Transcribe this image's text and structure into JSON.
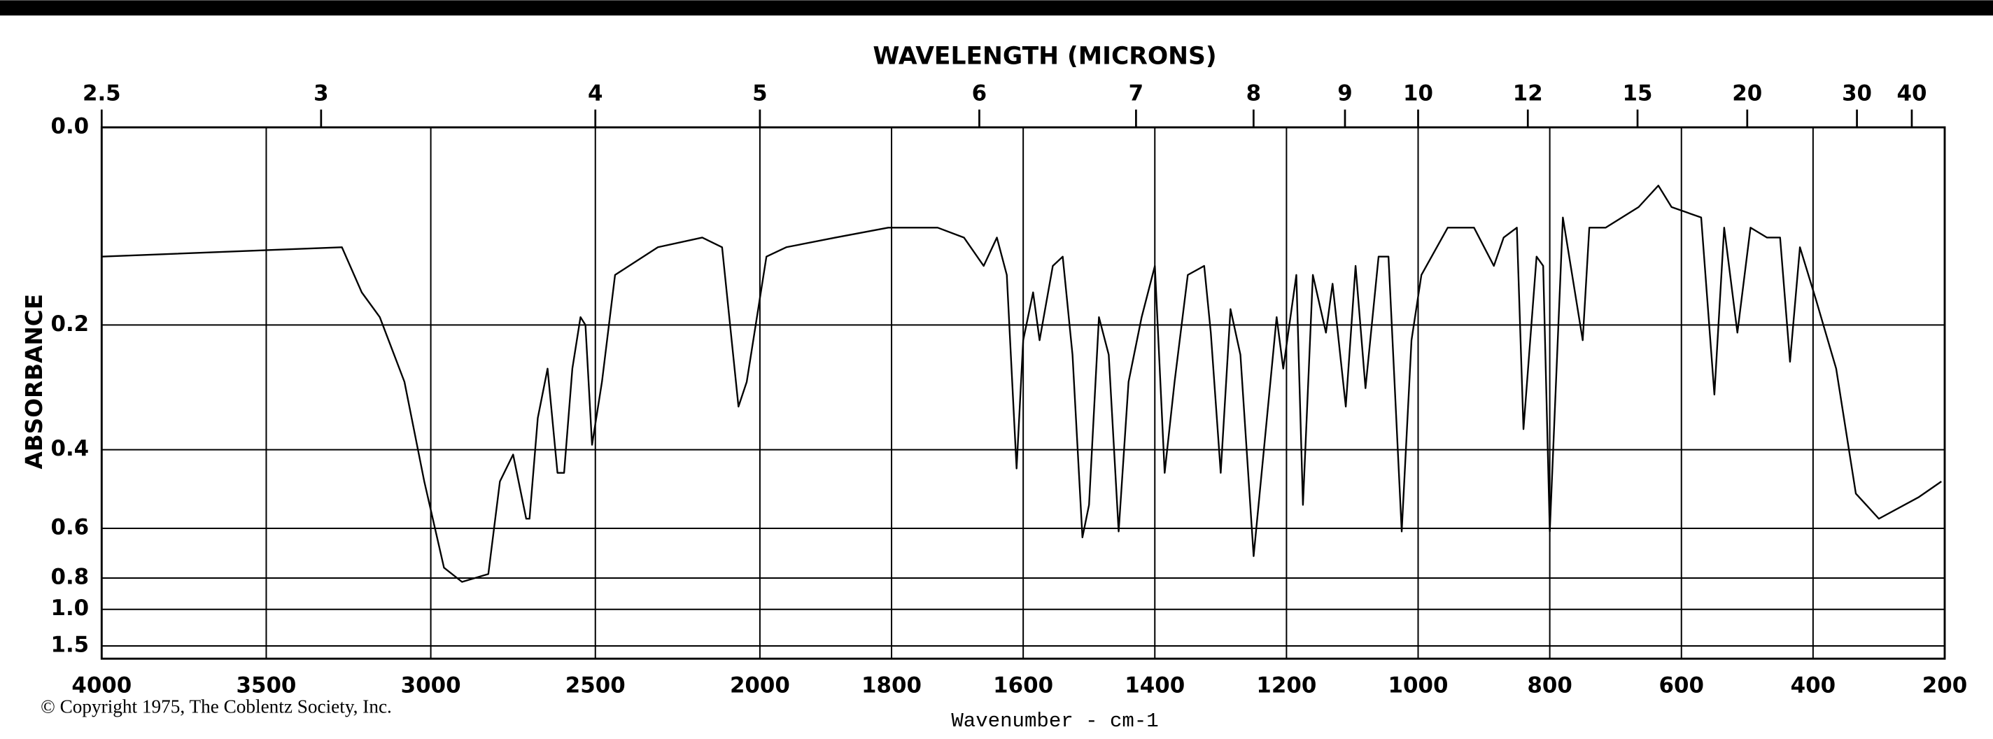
{
  "chart_data": {
    "type": "line",
    "title": "WAVELENGTH (MICRONS)",
    "x_label": "Wavenumber - cm-1",
    "y_label": "ABSORBANCE",
    "footnote": "© Copyright 1975, The Coblentz Society, Inc.",
    "xlim": [
      4000,
      200
    ],
    "xbreak": 2000,
    "xbreak_scale": 2,
    "xticks": [
      4000,
      3500,
      3000,
      2500,
      2000,
      1800,
      1600,
      1400,
      1200,
      1000,
      800,
      600,
      400,
      200
    ],
    "x2ticks": [
      2.5,
      3,
      4,
      5,
      6,
      7,
      8,
      9,
      10,
      12,
      15,
      20,
      30,
      40
    ],
    "ylim": [
      0,
      1.5
    ],
    "yscale": "transmittance",
    "yticks": [
      {
        "value": 0,
        "label": "0.0"
      },
      0.2,
      0.4,
      0.6,
      0.8,
      {
        "value": 1.0,
        "label": "1.0"
      },
      1.5
    ],
    "grid": true,
    "color": "#000000",
    "x": [
      4000,
      3270,
      3210,
      3155,
      3080,
      3020,
      2960,
      2905,
      2825,
      2790,
      2750,
      2710,
      2700,
      2675,
      2645,
      2615,
      2595,
      2570,
      2545,
      2530,
      2510,
      2480,
      2440,
      2310,
      2175,
      2115,
      2065,
      2040,
      1990,
      1960,
      1885,
      1805,
      1730,
      1690,
      1660,
      1640,
      1625,
      1610,
      1600,
      1585,
      1575,
      1555,
      1540,
      1525,
      1510,
      1500,
      1485,
      1470,
      1455,
      1440,
      1420,
      1400,
      1385,
      1370,
      1350,
      1325,
      1315,
      1300,
      1285,
      1270,
      1250,
      1235,
      1215,
      1205,
      1185,
      1175,
      1160,
      1140,
      1130,
      1110,
      1095,
      1080,
      1060,
      1045,
      1025,
      1010,
      995,
      955,
      915,
      885,
      870,
      850,
      840,
      820,
      810,
      800,
      780,
      750,
      740,
      715,
      665,
      635,
      615,
      570,
      550,
      535,
      515,
      495,
      470,
      450,
      435,
      420,
      395,
      365,
      335,
      300,
      240,
      205
    ],
    "values": [
      0.12,
      0.11,
      0.16,
      0.19,
      0.28,
      0.47,
      0.75,
      0.82,
      0.78,
      0.47,
      0.41,
      0.57,
      0.57,
      0.34,
      0.26,
      0.45,
      0.45,
      0.26,
      0.19,
      0.2,
      0.39,
      0.28,
      0.14,
      0.11,
      0.1,
      0.11,
      0.32,
      0.28,
      0.12,
      0.11,
      0.1,
      0.09,
      0.09,
      0.1,
      0.13,
      0.1,
      0.14,
      0.44,
      0.22,
      0.16,
      0.22,
      0.13,
      0.12,
      0.24,
      0.63,
      0.53,
      0.19,
      0.24,
      0.61,
      0.28,
      0.19,
      0.13,
      0.45,
      0.28,
      0.14,
      0.13,
      0.21,
      0.45,
      0.18,
      0.24,
      0.7,
      0.41,
      0.19,
      0.26,
      0.14,
      0.53,
      0.14,
      0.21,
      0.15,
      0.32,
      0.13,
      0.29,
      0.12,
      0.12,
      0.61,
      0.22,
      0.14,
      0.09,
      0.09,
      0.13,
      0.1,
      0.09,
      0.36,
      0.12,
      0.13,
      0.61,
      0.08,
      0.22,
      0.09,
      0.09,
      0.07,
      0.05,
      0.07,
      0.08,
      0.3,
      0.09,
      0.21,
      0.09,
      0.1,
      0.1,
      0.25,
      0.11,
      0.17,
      0.26,
      0.5,
      0.57,
      0.51,
      0.47
    ]
  }
}
